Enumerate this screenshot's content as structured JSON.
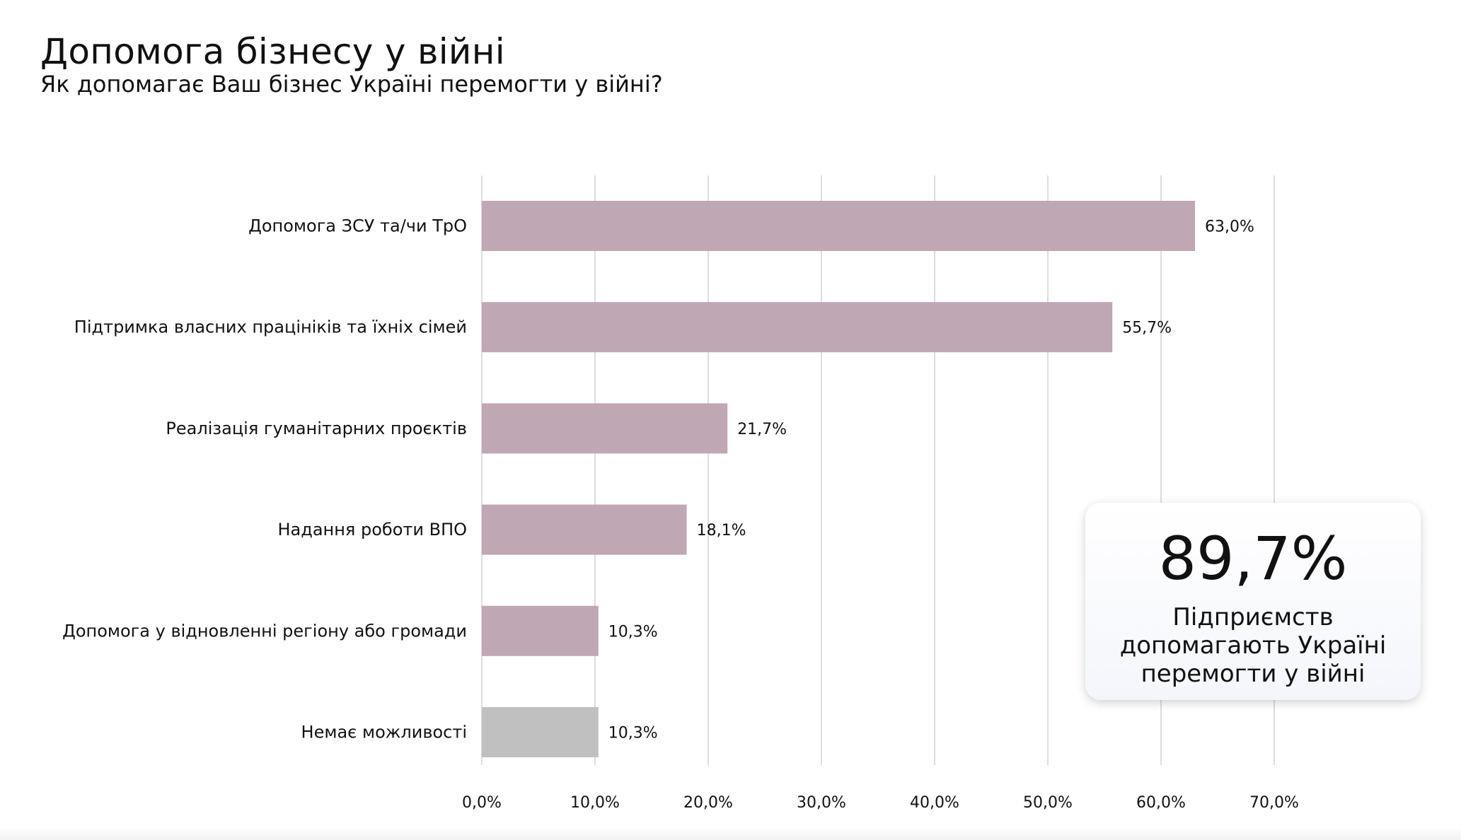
{
  "title": "Допомога бізнесу у війні",
  "subtitle": "Як допомагає Ваш бізнес Україні перемогти у війні?",
  "chart_data": {
    "type": "bar",
    "orientation": "horizontal",
    "categories": [
      "Допомога ЗСУ та/чи ТрО",
      "Підтримка власних працініків та їхніх сімей",
      "Реалізація гуманітарних проєктів",
      "Надання роботи ВПО",
      "Допомога у відновленні регіону або громади",
      "Немає можливості"
    ],
    "values": [
      63.0,
      55.7,
      21.7,
      18.1,
      10.3,
      10.3
    ],
    "value_labels": [
      "63,0%",
      "55,7%",
      "21,7%",
      "18,1%",
      "10,3%",
      "10,3%"
    ],
    "bar_colors": [
      "#c0a7b4",
      "#c0a7b4",
      "#c0a7b4",
      "#c0a7b4",
      "#c0a7b4",
      "#c0c0c0"
    ],
    "xlim": [
      0,
      70
    ],
    "x_ticks": [
      0,
      10,
      20,
      30,
      40,
      50,
      60,
      70
    ],
    "x_tick_labels": [
      "0,0%",
      "10,0%",
      "20,0%",
      "30,0%",
      "40,0%",
      "50,0%",
      "60,0%",
      "70,0%"
    ],
    "grid": "vertical",
    "grid_color": "#dddddd"
  },
  "callout": {
    "value": "89,7%",
    "text": "Підприємств допомагають Україні перемогти у війні"
  }
}
